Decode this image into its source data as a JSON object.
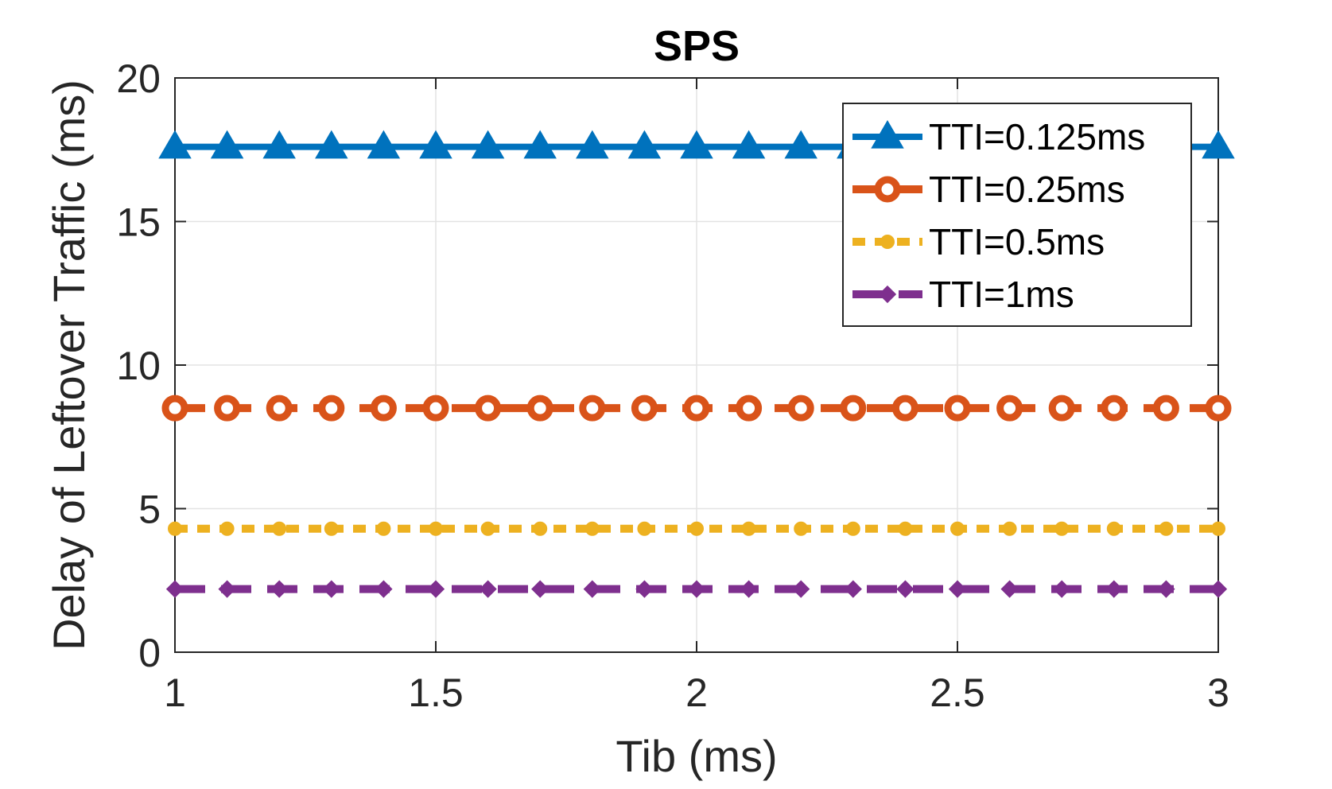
{
  "chart_data": {
    "type": "line",
    "title": "SPS",
    "xlabel": "Tib (ms)",
    "ylabel": "Delay of Leftover Traffic (ms)",
    "xlim": [
      1,
      3
    ],
    "ylim": [
      0,
      20
    ],
    "xticks": [
      1,
      1.5,
      2,
      2.5,
      3
    ],
    "xtick_labels": [
      "1",
      "1.5",
      "2",
      "2.5",
      "3"
    ],
    "yticks": [
      0,
      5,
      10,
      15,
      20
    ],
    "ytick_labels": [
      "0",
      "5",
      "10",
      "15",
      "20"
    ],
    "grid": true,
    "legend_position": "top-right",
    "x": [
      1.0,
      1.1,
      1.2,
      1.3,
      1.4,
      1.5,
      1.6,
      1.7,
      1.8,
      1.9,
      2.0,
      2.1,
      2.2,
      2.3,
      2.4,
      2.5,
      2.6,
      2.7,
      2.8,
      2.9,
      3.0
    ],
    "series": [
      {
        "name": "TTI=0.125ms",
        "color": "#0072BD",
        "marker": "triangle",
        "line_style": "solid",
        "values": [
          17.6,
          17.6,
          17.6,
          17.6,
          17.6,
          17.6,
          17.6,
          17.6,
          17.6,
          17.6,
          17.6,
          17.6,
          17.6,
          17.6,
          17.6,
          17.6,
          17.6,
          17.6,
          17.6,
          17.6,
          17.6
        ]
      },
      {
        "name": "TTI=0.25ms",
        "color": "#D95319",
        "marker": "circle",
        "line_style": "dashed",
        "values": [
          8.5,
          8.5,
          8.5,
          8.5,
          8.5,
          8.5,
          8.5,
          8.5,
          8.5,
          8.5,
          8.5,
          8.5,
          8.5,
          8.5,
          8.5,
          8.5,
          8.5,
          8.5,
          8.5,
          8.5,
          8.5
        ]
      },
      {
        "name": "TTI=0.5ms",
        "color": "#EDB120",
        "marker": "small-circle",
        "line_style": "dotted",
        "values": [
          4.3,
          4.3,
          4.3,
          4.3,
          4.3,
          4.3,
          4.3,
          4.3,
          4.3,
          4.3,
          4.3,
          4.3,
          4.3,
          4.3,
          4.3,
          4.3,
          4.3,
          4.3,
          4.3,
          4.3,
          4.3
        ]
      },
      {
        "name": "TTI=1ms",
        "color": "#7E2F8E",
        "marker": "diamond",
        "line_style": "dashed",
        "values": [
          2.2,
          2.2,
          2.2,
          2.2,
          2.2,
          2.2,
          2.2,
          2.2,
          2.2,
          2.2,
          2.2,
          2.2,
          2.2,
          2.2,
          2.2,
          2.2,
          2.2,
          2.2,
          2.2,
          2.2,
          2.2
        ]
      }
    ]
  }
}
